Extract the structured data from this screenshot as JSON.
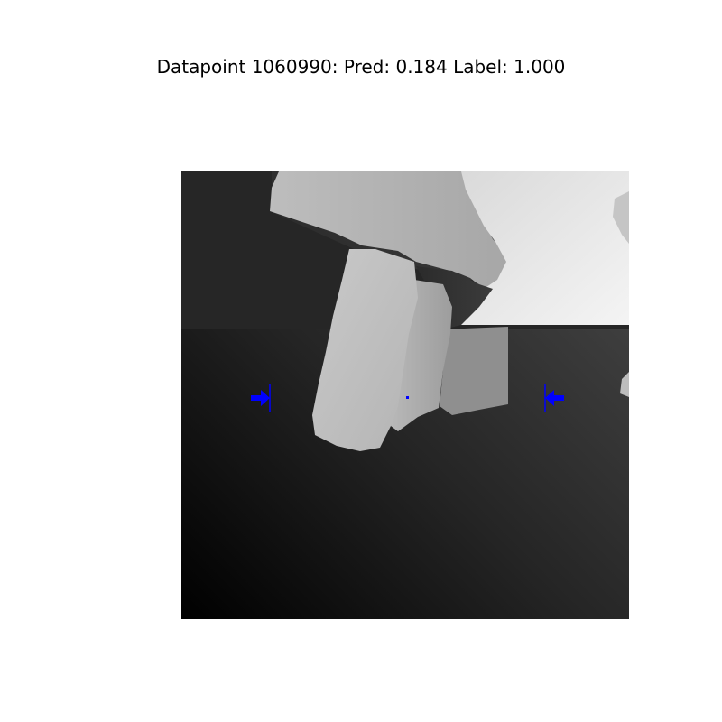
{
  "figure": {
    "title": "Datapoint 1060990: Pred: 0.184 Label: 1.000"
  },
  "marker_color": "#0000ff",
  "image": {
    "kind": "grayscale depth image",
    "annotations": [
      "left grasp arrow",
      "right grasp arrow",
      "center point"
    ]
  }
}
